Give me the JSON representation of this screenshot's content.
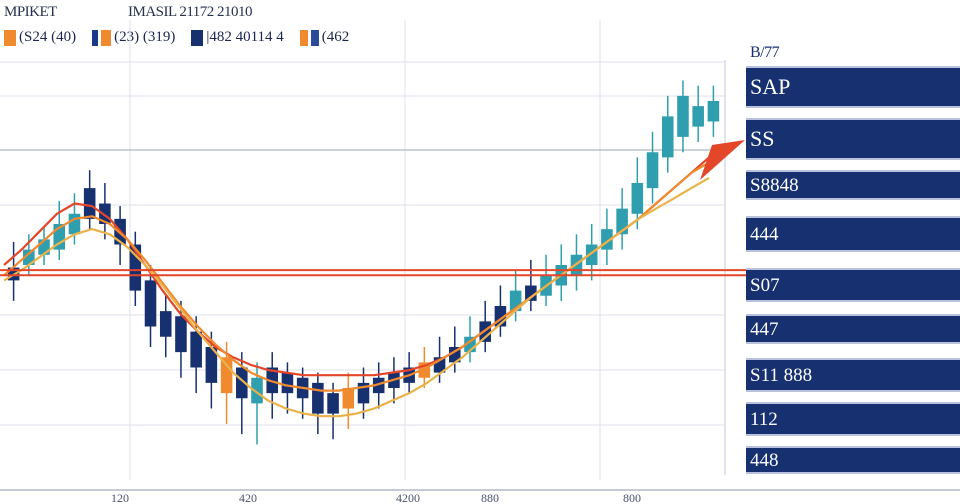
{
  "header": {
    "left": "MPIKET",
    "center": "IMASIL 21172 21010"
  },
  "legend": [
    {
      "label": "(S24 (40)",
      "colors": [
        "#f08a2e",
        "#f08a2e"
      ]
    },
    {
      "label": "(23) (319)",
      "colors": [
        "#1d3a8a",
        "#f08a2e"
      ]
    },
    {
      "label": "|482 40114 4",
      "colors": [
        "#17306f",
        "#17306f"
      ]
    },
    {
      "label": "(462",
      "colors": [
        "#f08a2e",
        "#2a4b9a"
      ]
    }
  ],
  "panel": {
    "top_label": "B/77",
    "rows": [
      "SAP",
      "SS",
      "S8848",
      "444",
      "S07",
      "447",
      "S11 888",
      "112",
      "448"
    ]
  },
  "colors": {
    "navy": "#17306f",
    "teal": "#2f9fb0",
    "orange": "#f08a2e",
    "red": "#e4462a",
    "gold": "#e9b24a"
  },
  "chart_data": {
    "type": "candlestick",
    "x_tick_labels": [
      "120",
      "420",
      "4200",
      "880",
      "800"
    ],
    "candles": [
      {
        "o": 0.74,
        "c": 0.79,
        "h": 0.89,
        "l": 0.66,
        "color": "navy"
      },
      {
        "o": 0.8,
        "c": 0.86,
        "h": 0.92,
        "l": 0.76,
        "color": "teal"
      },
      {
        "o": 0.84,
        "c": 0.9,
        "h": 0.95,
        "l": 0.8,
        "color": "teal"
      },
      {
        "o": 0.86,
        "c": 0.96,
        "h": 1.05,
        "l": 0.82,
        "color": "teal"
      },
      {
        "o": 0.92,
        "c": 1.0,
        "h": 1.08,
        "l": 0.88,
        "color": "teal"
      },
      {
        "o": 0.98,
        "c": 1.1,
        "h": 1.17,
        "l": 0.94,
        "color": "navy"
      },
      {
        "o": 1.04,
        "c": 0.96,
        "h": 1.12,
        "l": 0.9,
        "color": "navy"
      },
      {
        "o": 0.98,
        "c": 0.88,
        "h": 1.03,
        "l": 0.8,
        "color": "navy"
      },
      {
        "o": 0.88,
        "c": 0.7,
        "h": 0.93,
        "l": 0.64,
        "color": "navy"
      },
      {
        "o": 0.74,
        "c": 0.56,
        "h": 0.8,
        "l": 0.48,
        "color": "navy"
      },
      {
        "o": 0.62,
        "c": 0.52,
        "h": 0.68,
        "l": 0.44,
        "color": "navy"
      },
      {
        "o": 0.6,
        "c": 0.46,
        "h": 0.66,
        "l": 0.36,
        "color": "navy"
      },
      {
        "o": 0.54,
        "c": 0.4,
        "h": 0.6,
        "l": 0.3,
        "color": "navy"
      },
      {
        "o": 0.48,
        "c": 0.34,
        "h": 0.54,
        "l": 0.24,
        "color": "navy"
      },
      {
        "o": 0.44,
        "c": 0.3,
        "h": 0.5,
        "l": 0.18,
        "color": "orange"
      },
      {
        "o": 0.4,
        "c": 0.28,
        "h": 0.46,
        "l": 0.14,
        "color": "navy"
      },
      {
        "o": 0.36,
        "c": 0.26,
        "h": 0.42,
        "l": 0.1,
        "color": "teal"
      },
      {
        "o": 0.4,
        "c": 0.3,
        "h": 0.46,
        "l": 0.2,
        "color": "navy"
      },
      {
        "o": 0.38,
        "c": 0.3,
        "h": 0.42,
        "l": 0.22,
        "color": "navy"
      },
      {
        "o": 0.36,
        "c": 0.28,
        "h": 0.4,
        "l": 0.2,
        "color": "navy"
      },
      {
        "o": 0.34,
        "c": 0.22,
        "h": 0.38,
        "l": 0.14,
        "color": "navy"
      },
      {
        "o": 0.3,
        "c": 0.22,
        "h": 0.34,
        "l": 0.12,
        "color": "navy"
      },
      {
        "o": 0.32,
        "c": 0.24,
        "h": 0.38,
        "l": 0.16,
        "color": "orange"
      },
      {
        "o": 0.34,
        "c": 0.26,
        "h": 0.4,
        "l": 0.2,
        "color": "navy"
      },
      {
        "o": 0.36,
        "c": 0.3,
        "h": 0.42,
        "l": 0.24,
        "color": "navy"
      },
      {
        "o": 0.38,
        "c": 0.32,
        "h": 0.44,
        "l": 0.26,
        "color": "navy"
      },
      {
        "o": 0.4,
        "c": 0.34,
        "h": 0.46,
        "l": 0.3,
        "color": "navy"
      },
      {
        "o": 0.42,
        "c": 0.36,
        "h": 0.48,
        "l": 0.32,
        "color": "orange"
      },
      {
        "o": 0.44,
        "c": 0.38,
        "h": 0.52,
        "l": 0.34,
        "color": "navy"
      },
      {
        "o": 0.48,
        "c": 0.42,
        "h": 0.56,
        "l": 0.38,
        "color": "navy"
      },
      {
        "o": 0.52,
        "c": 0.46,
        "h": 0.6,
        "l": 0.42,
        "color": "teal"
      },
      {
        "o": 0.58,
        "c": 0.5,
        "h": 0.66,
        "l": 0.46,
        "color": "navy"
      },
      {
        "o": 0.64,
        "c": 0.56,
        "h": 0.72,
        "l": 0.52,
        "color": "navy"
      },
      {
        "o": 0.7,
        "c": 0.62,
        "h": 0.78,
        "l": 0.58,
        "color": "teal"
      },
      {
        "o": 0.72,
        "c": 0.66,
        "h": 0.82,
        "l": 0.62,
        "color": "navy"
      },
      {
        "o": 0.76,
        "c": 0.68,
        "h": 0.84,
        "l": 0.64,
        "color": "teal"
      },
      {
        "o": 0.8,
        "c": 0.72,
        "h": 0.88,
        "l": 0.66,
        "color": "teal"
      },
      {
        "o": 0.84,
        "c": 0.76,
        "h": 0.92,
        "l": 0.7,
        "color": "teal"
      },
      {
        "o": 0.88,
        "c": 0.8,
        "h": 0.96,
        "l": 0.74,
        "color": "teal"
      },
      {
        "o": 0.94,
        "c": 0.86,
        "h": 1.02,
        "l": 0.8,
        "color": "teal"
      },
      {
        "o": 1.02,
        "c": 0.92,
        "h": 1.1,
        "l": 0.86,
        "color": "teal"
      },
      {
        "o": 1.12,
        "c": 1.0,
        "h": 1.22,
        "l": 0.94,
        "color": "teal"
      },
      {
        "o": 1.24,
        "c": 1.1,
        "h": 1.32,
        "l": 1.04,
        "color": "teal"
      },
      {
        "o": 1.38,
        "c": 1.22,
        "h": 1.46,
        "l": 1.16,
        "color": "teal"
      },
      {
        "o": 1.46,
        "c": 1.3,
        "h": 1.52,
        "l": 1.24,
        "color": "teal"
      },
      {
        "o": 1.42,
        "c": 1.34,
        "h": 1.5,
        "l": 1.28,
        "color": "teal"
      },
      {
        "o": 1.44,
        "c": 1.36,
        "h": 1.5,
        "l": 1.3,
        "color": "teal"
      }
    ],
    "series": [
      {
        "color": "red",
        "values": [
          0.8,
          0.86,
          0.93,
          1.0,
          1.04,
          1.03,
          0.98,
          0.9,
          0.8,
          0.7,
          0.61,
          0.54,
          0.48,
          0.44,
          0.41,
          0.39,
          0.38,
          0.37,
          0.37,
          0.37,
          0.37,
          0.37,
          0.38,
          0.39,
          0.41,
          0.44,
          0.48,
          0.53,
          0.58,
          0.63,
          0.68,
          0.73,
          0.78,
          0.83,
          0.88,
          0.93,
          0.98,
          1.04,
          1.1,
          1.16,
          1.22
        ]
      },
      {
        "color": "orange",
        "values": [
          0.76,
          0.82,
          0.88,
          0.94,
          0.98,
          0.99,
          0.96,
          0.9,
          0.82,
          0.73,
          0.64,
          0.56,
          0.49,
          0.43,
          0.38,
          0.35,
          0.33,
          0.32,
          0.31,
          0.31,
          0.32,
          0.33,
          0.35,
          0.37,
          0.4,
          0.44,
          0.48,
          0.53,
          0.58,
          0.63,
          0.68,
          0.73,
          0.78,
          0.83,
          0.88,
          0.93,
          0.98,
          1.04,
          1.1,
          1.16,
          1.2
        ]
      },
      {
        "color": "gold",
        "values": [
          0.74,
          0.78,
          0.83,
          0.88,
          0.92,
          0.94,
          0.92,
          0.87,
          0.8,
          0.72,
          0.63,
          0.54,
          0.46,
          0.38,
          0.32,
          0.27,
          0.24,
          0.22,
          0.21,
          0.21,
          0.22,
          0.24,
          0.27,
          0.3,
          0.34,
          0.39,
          0.44,
          0.5,
          0.56,
          0.62,
          0.68,
          0.73,
          0.78,
          0.83,
          0.88,
          0.93,
          0.98,
          1.02,
          1.06,
          1.1,
          1.14
        ]
      }
    ],
    "horizontal_levels": [
      0.78,
      0.76
    ],
    "ylim": [
      0.0,
      1.6
    ]
  }
}
